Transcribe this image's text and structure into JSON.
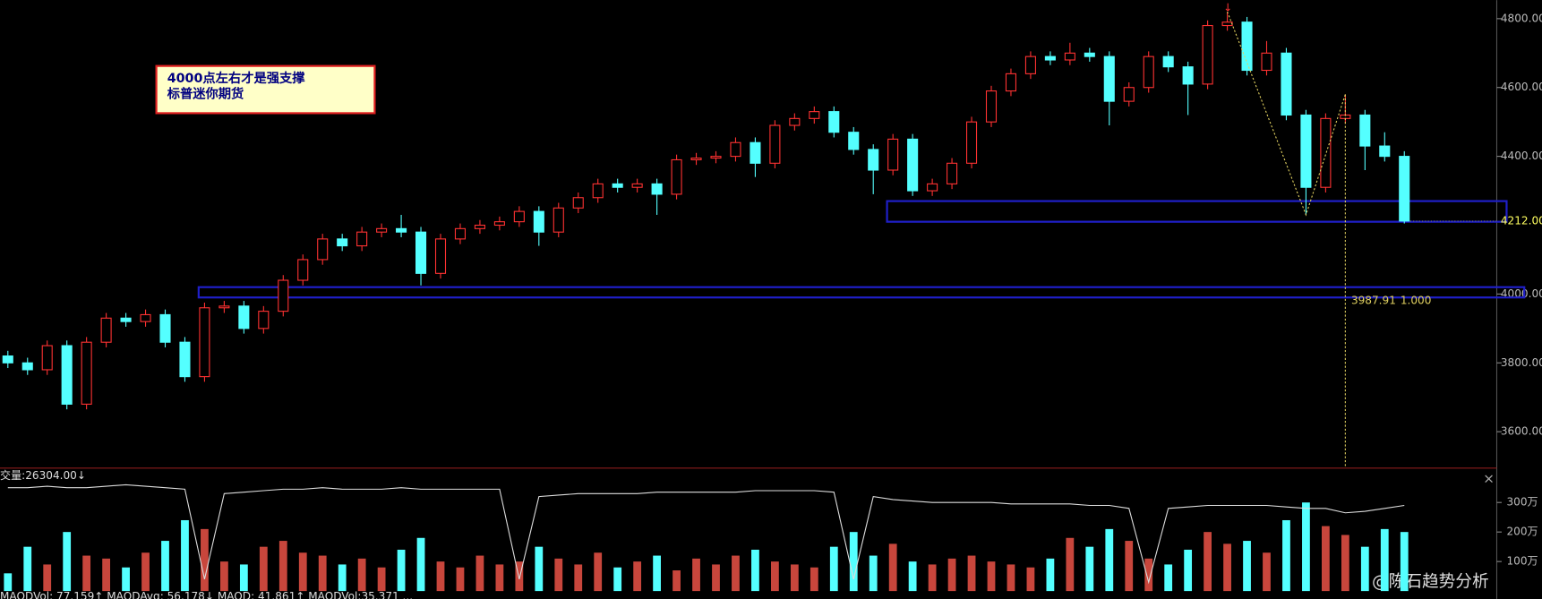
{
  "chart_data": {
    "type": "candlestick",
    "note_lines": [
      "4000点左右才是强支撑",
      "标普迷你期货"
    ],
    "up_color": "#ff3232",
    "down_color": "#54ffff",
    "ylim": [
      3497,
      4854
    ],
    "yticks": [
      {
        "value": 3600,
        "label": "3600.00"
      },
      {
        "value": 3800,
        "label": "3800.00"
      },
      {
        "value": 4000,
        "label": "4000.00"
      },
      {
        "value": 4400,
        "label": "4400.00"
      },
      {
        "value": 4600,
        "label": "4600.00"
      },
      {
        "value": 4800,
        "label": "4800.00"
      }
    ],
    "last_price": {
      "value": 4212,
      "label": "4212.00"
    },
    "zones": [
      {
        "low": 3990,
        "high": 4020,
        "start": 10
      },
      {
        "low": 4210,
        "high": 4270,
        "start": 45
      }
    ],
    "pattern": [
      {
        "index": 62,
        "value": 4820
      },
      {
        "index": 66,
        "value": 4230
      },
      {
        "index": 68,
        "value": 4580
      }
    ],
    "fib_labels": [
      "3987.91",
      "1.000"
    ],
    "candles": [
      [
        3820,
        3835,
        3785,
        3800
      ],
      [
        3800,
        3815,
        3765,
        3780
      ],
      [
        3780,
        3865,
        3765,
        3850
      ],
      [
        3850,
        3865,
        3665,
        3680
      ],
      [
        3680,
        3875,
        3665,
        3860
      ],
      [
        3860,
        3945,
        3845,
        3930
      ],
      [
        3930,
        3945,
        3905,
        3920
      ],
      [
        3920,
        3955,
        3905,
        3940
      ],
      [
        3940,
        3955,
        3845,
        3860
      ],
      [
        3860,
        3875,
        3745,
        3760
      ],
      [
        3760,
        3975,
        3745,
        3960
      ],
      [
        3960,
        3980,
        3945,
        3965
      ],
      [
        3965,
        3980,
        3885,
        3900
      ],
      [
        3900,
        3965,
        3885,
        3950
      ],
      [
        3950,
        4055,
        3935,
        4040
      ],
      [
        4040,
        4115,
        4025,
        4100
      ],
      [
        4100,
        4175,
        4085,
        4160
      ],
      [
        4160,
        4175,
        4125,
        4140
      ],
      [
        4140,
        4195,
        4125,
        4180
      ],
      [
        4180,
        4205,
        4165,
        4190
      ],
      [
        4190,
        4230,
        4165,
        4180
      ],
      [
        4180,
        4195,
        4025,
        4060
      ],
      [
        4060,
        4175,
        4045,
        4160
      ],
      [
        4160,
        4205,
        4145,
        4190
      ],
      [
        4190,
        4215,
        4175,
        4200
      ],
      [
        4200,
        4225,
        4185,
        4210
      ],
      [
        4210,
        4255,
        4195,
        4240
      ],
      [
        4240,
        4255,
        4140,
        4180
      ],
      [
        4180,
        4265,
        4165,
        4250
      ],
      [
        4250,
        4295,
        4235,
        4280
      ],
      [
        4280,
        4335,
        4265,
        4320
      ],
      [
        4320,
        4335,
        4295,
        4310
      ],
      [
        4310,
        4335,
        4295,
        4320
      ],
      [
        4320,
        4335,
        4230,
        4290
      ],
      [
        4290,
        4405,
        4275,
        4390
      ],
      [
        4390,
        4410,
        4375,
        4395
      ],
      [
        4395,
        4415,
        4380,
        4400
      ],
      [
        4400,
        4455,
        4385,
        4440
      ],
      [
        4440,
        4455,
        4340,
        4380
      ],
      [
        4380,
        4505,
        4365,
        4490
      ],
      [
        4490,
        4525,
        4475,
        4510
      ],
      [
        4510,
        4545,
        4495,
        4530
      ],
      [
        4530,
        4545,
        4455,
        4470
      ],
      [
        4470,
        4485,
        4405,
        4420
      ],
      [
        4420,
        4435,
        4290,
        4360
      ],
      [
        4360,
        4465,
        4345,
        4450
      ],
      [
        4450,
        4465,
        4285,
        4300
      ],
      [
        4300,
        4335,
        4285,
        4320
      ],
      [
        4320,
        4395,
        4305,
        4380
      ],
      [
        4380,
        4515,
        4365,
        4500
      ],
      [
        4500,
        4605,
        4485,
        4590
      ],
      [
        4590,
        4655,
        4575,
        4640
      ],
      [
        4640,
        4705,
        4625,
        4690
      ],
      [
        4690,
        4705,
        4665,
        4680
      ],
      [
        4680,
        4730,
        4665,
        4700
      ],
      [
        4700,
        4715,
        4675,
        4690
      ],
      [
        4690,
        4705,
        4490,
        4560
      ],
      [
        4560,
        4615,
        4545,
        4600
      ],
      [
        4600,
        4705,
        4585,
        4690
      ],
      [
        4690,
        4705,
        4645,
        4660
      ],
      [
        4660,
        4675,
        4520,
        4610
      ],
      [
        4610,
        4795,
        4595,
        4780
      ],
      [
        4780,
        4820,
        4765,
        4790
      ],
      [
        4790,
        4805,
        4635,
        4650
      ],
      [
        4650,
        4735,
        4635,
        4700
      ],
      [
        4700,
        4715,
        4505,
        4520
      ],
      [
        4520,
        4535,
        4230,
        4310
      ],
      [
        4310,
        4525,
        4295,
        4510
      ],
      [
        4510,
        4580,
        4495,
        4520
      ],
      [
        4520,
        4535,
        4360,
        4430
      ],
      [
        4430,
        4470,
        4385,
        4400
      ],
      [
        4400,
        4415,
        4205,
        4212
      ]
    ],
    "volume": {
      "header": "交量:26304.00↓",
      "ylim": [
        0,
        413
      ],
      "yticks": [
        {
          "value": 100,
          "label": "100万"
        },
        {
          "value": 200,
          "label": "200万"
        },
        {
          "value": 300,
          "label": "300万"
        }
      ],
      "values": [
        60,
        150,
        90,
        200,
        120,
        110,
        80,
        130,
        170,
        240,
        210,
        100,
        90,
        150,
        170,
        130,
        120,
        90,
        110,
        80,
        140,
        180,
        100,
        80,
        120,
        90,
        100,
        150,
        110,
        90,
        130,
        80,
        100,
        120,
        70,
        110,
        90,
        120,
        140,
        100,
        90,
        80,
        150,
        200,
        120,
        160,
        100,
        90,
        110,
        120,
        100,
        90,
        80,
        110,
        180,
        150,
        210,
        170,
        110,
        90,
        140,
        200,
        160,
        170,
        130,
        240,
        300,
        220,
        190,
        150,
        210,
        200
      ],
      "line": [
        350,
        350,
        355,
        350,
        350,
        355,
        360,
        355,
        350,
        345,
        40,
        330,
        335,
        340,
        345,
        345,
        350,
        345,
        345,
        345,
        350,
        345,
        345,
        345,
        345,
        345,
        40,
        320,
        325,
        330,
        330,
        330,
        330,
        335,
        335,
        335,
        335,
        335,
        340,
        340,
        340,
        340,
        335,
        40,
        320,
        310,
        305,
        300,
        300,
        300,
        300,
        295,
        295,
        295,
        295,
        290,
        290,
        280,
        30,
        280,
        285,
        290,
        290,
        290,
        290,
        285,
        280,
        280,
        265,
        270,
        280,
        290
      ]
    },
    "status": "MAODVol: 77.159↑  MAODAvg: 56.178↓  MAOD: 41.861↑  MAODVol:35.371  ...",
    "close_icon": "×",
    "watermark": "@陈石趋势分析"
  }
}
